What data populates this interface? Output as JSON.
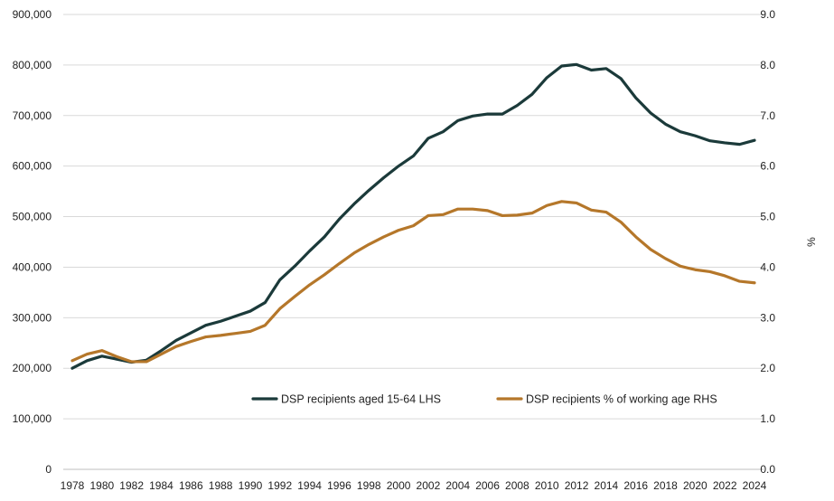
{
  "chart_data": {
    "type": "line",
    "title": "",
    "xlabel": "",
    "ylabel_left": "",
    "ylabel_right": "%",
    "x": [
      1978,
      1979,
      1980,
      1981,
      1982,
      1983,
      1984,
      1985,
      1986,
      1987,
      1988,
      1989,
      1990,
      1991,
      1992,
      1993,
      1994,
      1995,
      1996,
      1997,
      1998,
      1999,
      2000,
      2001,
      2002,
      2003,
      2004,
      2005,
      2006,
      2007,
      2008,
      2009,
      2010,
      2011,
      2012,
      2013,
      2014,
      2015,
      2016,
      2017,
      2018,
      2019,
      2020,
      2021,
      2022,
      2023,
      2024
    ],
    "x_tick_labels": [
      "1978",
      "1980",
      "1982",
      "1984",
      "1986",
      "1988",
      "1990",
      "1992",
      "1994",
      "1996",
      "1998",
      "2000",
      "2002",
      "2004",
      "2006",
      "2008",
      "2010",
      "2012",
      "2014",
      "2016",
      "2018",
      "2020",
      "2022",
      "2024"
    ],
    "ylim_left": [
      0,
      900000
    ],
    "ylim_right": [
      0,
      9
    ],
    "y_left_tick_labels": [
      "0",
      "100,000",
      "200,000",
      "300,000",
      "400,000",
      "500,000",
      "600,000",
      "700,000",
      "800,000",
      "900,000"
    ],
    "y_right_tick_labels": [
      "0.0",
      "1.0",
      "2.0",
      "3.0",
      "4.0",
      "5.0",
      "6.0",
      "7.0",
      "8.0",
      "9.0"
    ],
    "grid": true,
    "legend_position": "lower-center",
    "series": [
      {
        "name": "DSP recipients aged 15-64 LHS",
        "axis": "left",
        "color": "#1b3a3a",
        "values": [
          200000,
          215000,
          224000,
          218000,
          212000,
          216000,
          235000,
          255000,
          270000,
          285000,
          293000,
          303000,
          313000,
          330000,
          375000,
          402000,
          432000,
          460000,
          495000,
          525000,
          552000,
          577000,
          600000,
          620000,
          655000,
          668000,
          690000,
          699000,
          703000,
          703000,
          720000,
          742000,
          775000,
          798000,
          801000,
          790000,
          793000,
          773000,
          735000,
          705000,
          683000,
          668000,
          660000,
          650000,
          646000,
          643000,
          651000
        ]
      },
      {
        "name": "DSP recipients % of working age RHS",
        "axis": "right",
        "color": "#b5772a",
        "values": [
          2.15,
          2.28,
          2.35,
          2.23,
          2.13,
          2.13,
          2.28,
          2.43,
          2.53,
          2.62,
          2.65,
          2.69,
          2.73,
          2.85,
          3.18,
          3.42,
          3.65,
          3.85,
          4.07,
          4.28,
          4.45,
          4.6,
          4.73,
          4.82,
          5.02,
          5.04,
          5.15,
          5.15,
          5.12,
          5.02,
          5.03,
          5.07,
          5.22,
          5.3,
          5.27,
          5.13,
          5.09,
          4.89,
          4.6,
          4.35,
          4.17,
          4.02,
          3.95,
          3.91,
          3.83,
          3.72,
          3.69
        ]
      }
    ]
  }
}
